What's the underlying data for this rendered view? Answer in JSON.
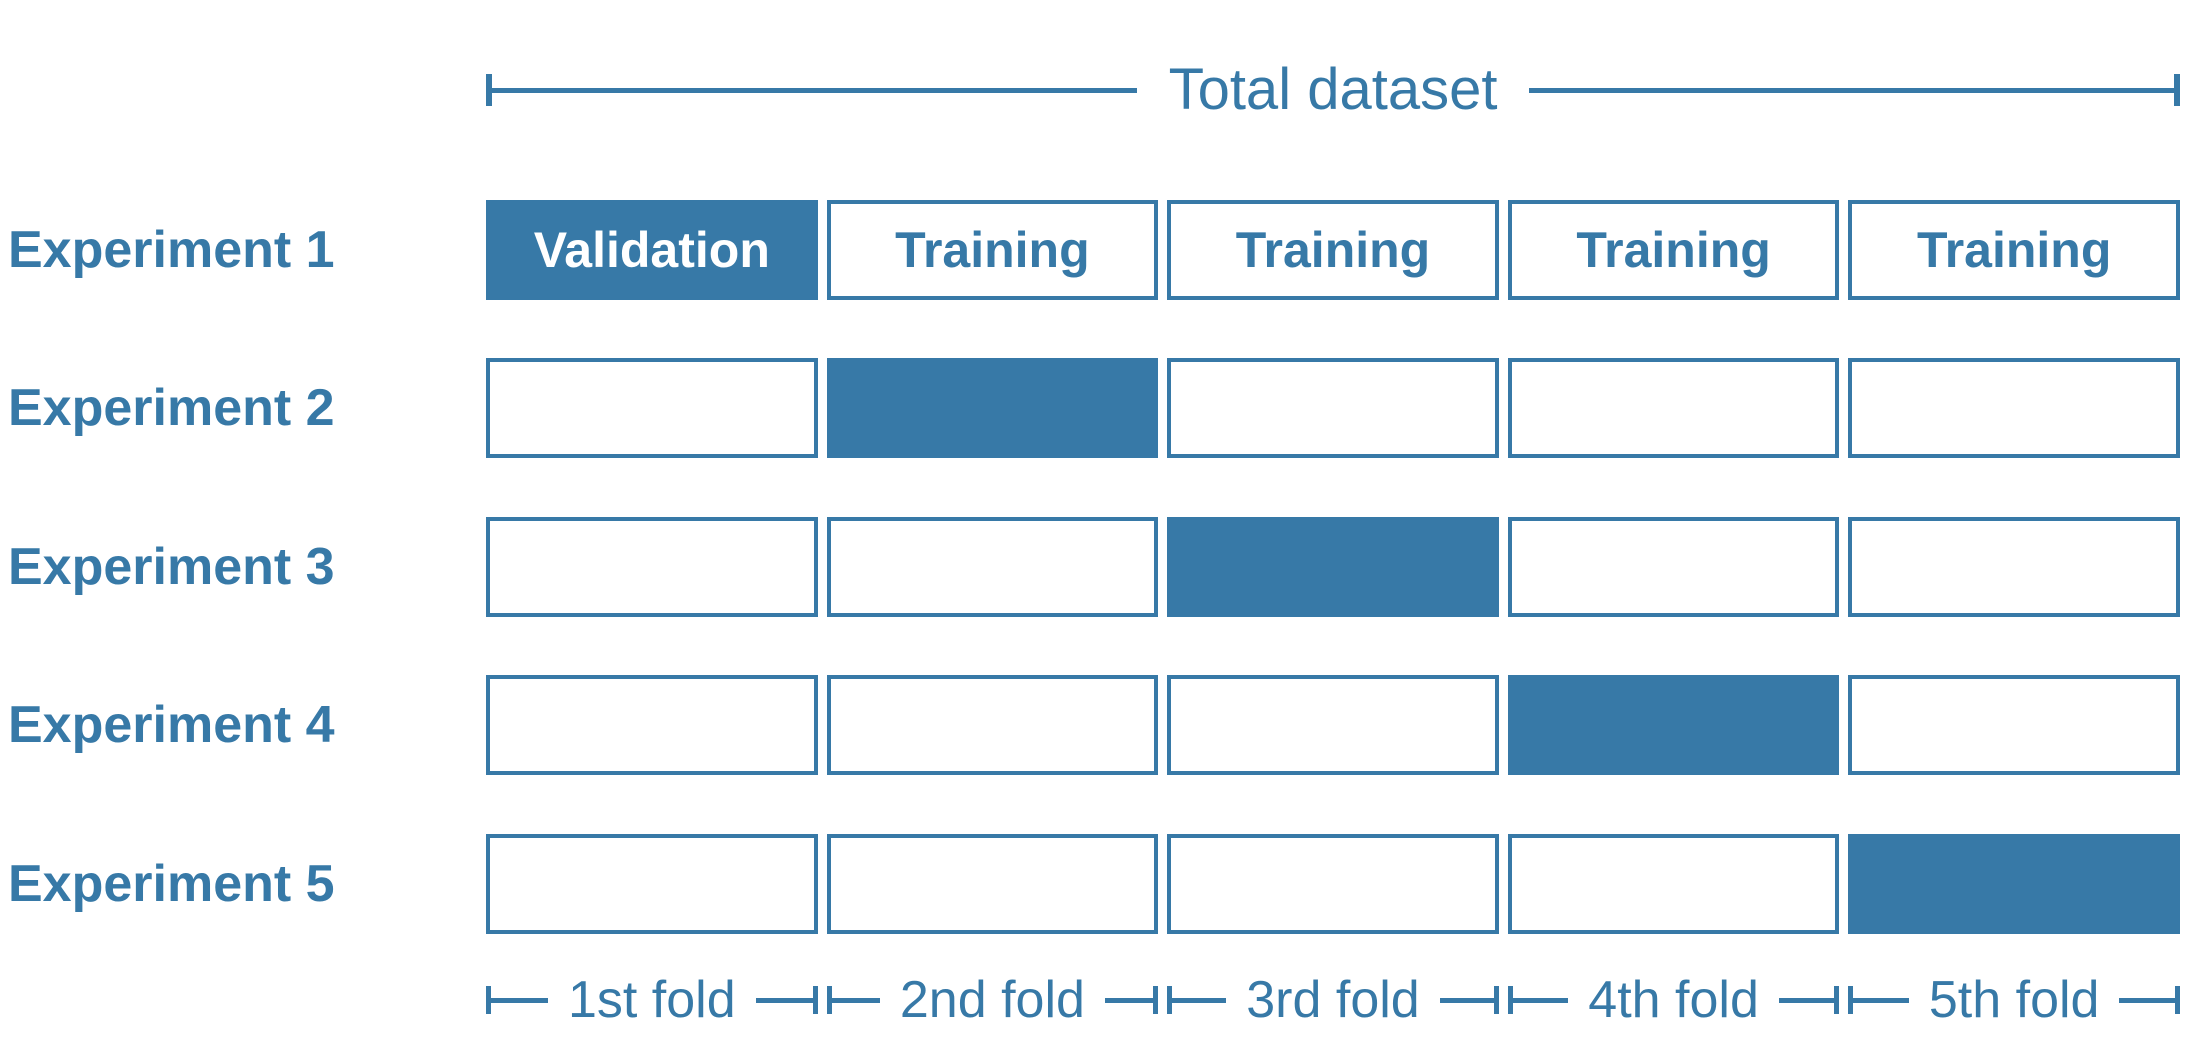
{
  "title": "5-fold cross-validation diagram",
  "colors": {
    "accent": "#3779A7",
    "background": "#FFFFFF",
    "filled_cell_text": "#FFFFFF"
  },
  "header": {
    "label": "Total dataset"
  },
  "rows": [
    {
      "label": "Experiment 1",
      "cells": [
        {
          "text": "Validation",
          "state": "filled"
        },
        {
          "text": "Training",
          "state": "empty"
        },
        {
          "text": "Training",
          "state": "empty"
        },
        {
          "text": "Training",
          "state": "empty"
        },
        {
          "text": "Training",
          "state": "empty"
        }
      ]
    },
    {
      "label": "Experiment 2",
      "cells": [
        {
          "text": "",
          "state": "empty"
        },
        {
          "text": "",
          "state": "filled"
        },
        {
          "text": "",
          "state": "empty"
        },
        {
          "text": "",
          "state": "empty"
        },
        {
          "text": "",
          "state": "empty"
        }
      ]
    },
    {
      "label": "Experiment 3",
      "cells": [
        {
          "text": "",
          "state": "empty"
        },
        {
          "text": "",
          "state": "empty"
        },
        {
          "text": "",
          "state": "filled"
        },
        {
          "text": "",
          "state": "empty"
        },
        {
          "text": "",
          "state": "empty"
        }
      ]
    },
    {
      "label": "Experiment 4",
      "cells": [
        {
          "text": "",
          "state": "empty"
        },
        {
          "text": "",
          "state": "empty"
        },
        {
          "text": "",
          "state": "empty"
        },
        {
          "text": "",
          "state": "filled"
        },
        {
          "text": "",
          "state": "empty"
        }
      ]
    },
    {
      "label": "Experiment 5",
      "cells": [
        {
          "text": "",
          "state": "empty"
        },
        {
          "text": "",
          "state": "empty"
        },
        {
          "text": "",
          "state": "empty"
        },
        {
          "text": "",
          "state": "empty"
        },
        {
          "text": "",
          "state": "filled"
        }
      ]
    }
  ],
  "footer": {
    "folds": [
      "1st fold",
      "2nd fold",
      "3rd fold",
      "4th fold",
      "5th fold"
    ]
  }
}
